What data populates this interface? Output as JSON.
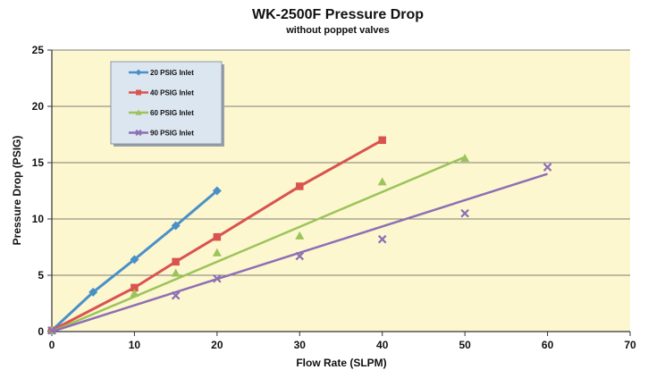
{
  "chart_data": {
    "type": "scatter",
    "title": "WK-2500F Pressure Drop",
    "subtitle": "without poppet valves",
    "xlabel": "Flow Rate (SLPM)",
    "ylabel": "Pressure Drop (PSIG)",
    "xlim": [
      0,
      70
    ],
    "ylim": [
      0,
      25
    ],
    "xticks": [
      "0",
      "10",
      "20",
      "30",
      "40",
      "50",
      "60",
      "70"
    ],
    "yticks": [
      "0",
      "5",
      "10",
      "15",
      "20",
      "25"
    ],
    "grid": "horizontal",
    "legend_position": "top-left",
    "plot_background": "#FCF7CF",
    "series": [
      {
        "name": "20 PSIG Inlet",
        "color": "#4A90C8",
        "marker": "diamond",
        "connected": true,
        "points": [
          [
            0,
            0.1
          ],
          [
            5,
            3.5
          ],
          [
            10,
            6.4
          ],
          [
            15,
            9.4
          ],
          [
            20,
            12.5
          ]
        ]
      },
      {
        "name": "40 PSIG Inlet",
        "color": "#D9534F",
        "marker": "square",
        "connected": true,
        "points": [
          [
            0,
            0.1
          ],
          [
            10,
            3.9
          ],
          [
            15,
            6.2
          ],
          [
            20,
            8.4
          ],
          [
            30,
            12.9
          ],
          [
            40,
            17.0
          ]
        ]
      },
      {
        "name": "60 PSIG Inlet",
        "color": "#9CC45A",
        "marker": "triangle",
        "connected": false,
        "points": [
          [
            0,
            0.1
          ],
          [
            10,
            3.4
          ],
          [
            15,
            5.2
          ],
          [
            20,
            7.0
          ],
          [
            30,
            8.5
          ],
          [
            40,
            13.3
          ],
          [
            50,
            15.4
          ]
        ],
        "trend": [
          [
            0,
            0
          ],
          [
            50,
            15.5
          ]
        ]
      },
      {
        "name": "90 PSIG Inlet",
        "color": "#8E6FB5",
        "marker": "x",
        "connected": false,
        "points": [
          [
            0,
            0.1
          ],
          [
            15,
            3.2
          ],
          [
            20,
            4.7
          ],
          [
            30,
            6.7
          ],
          [
            40,
            8.2
          ],
          [
            50,
            10.5
          ],
          [
            60,
            14.6
          ]
        ],
        "trend": [
          [
            0,
            0
          ],
          [
            60,
            14.0
          ]
        ]
      }
    ]
  }
}
